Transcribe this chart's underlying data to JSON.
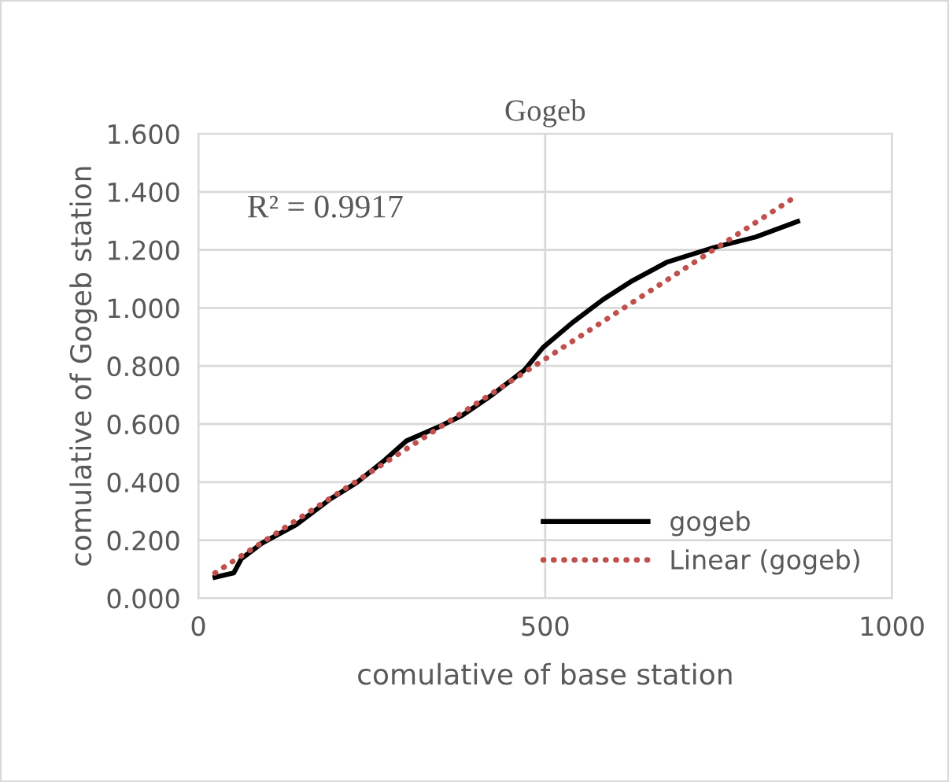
{
  "chart_data": {
    "type": "line",
    "title": "Gogeb",
    "xlabel": "comulative of base station",
    "ylabel": "comulative of Gogeb station",
    "annotations": [
      "R² = 0.9917"
    ],
    "series": [
      {
        "name": "gogeb",
        "color": "#000000",
        "line_style": "solid",
        "x": [
          24,
          51,
          62,
          92,
          141,
          191,
          228,
          266,
          300,
          349,
          380,
          421,
          470,
          497,
          539,
          584,
          626,
          675,
          743,
          803,
          864
        ],
        "values": [
          0.072,
          0.087,
          0.136,
          0.19,
          0.253,
          0.343,
          0.398,
          0.47,
          0.542,
          0.593,
          0.629,
          0.696,
          0.786,
          0.864,
          0.949,
          1.03,
          1.094,
          1.157,
          1.208,
          1.244,
          1.298
        ]
      },
      {
        "name": "Linear (gogeb)",
        "color": "#c0504d",
        "line_style": "dotted",
        "x": [
          24,
          864
        ],
        "values": [
          0.087,
          1.388
        ]
      }
    ],
    "xlim": [
      0,
      1000
    ],
    "xticks": [
      0,
      500,
      1000
    ],
    "ylim": [
      0,
      1.6
    ],
    "yticks": [
      {
        "value": 0,
        "label": "0.000"
      },
      {
        "value": 0.2,
        "label": "0.200"
      },
      {
        "value": 0.4,
        "label": "0.400"
      },
      {
        "value": 0.6,
        "label": "0.600"
      },
      {
        "value": 0.8,
        "label": "0.800"
      },
      {
        "value": 1.0,
        "label": "1.000"
      },
      {
        "value": 1.2,
        "label": "1.200"
      },
      {
        "value": 1.4,
        "label": "1.400"
      },
      {
        "value": 1.6,
        "label": "1.600"
      }
    ],
    "grid": true,
    "legend": "bottom right",
    "marker": "none"
  }
}
